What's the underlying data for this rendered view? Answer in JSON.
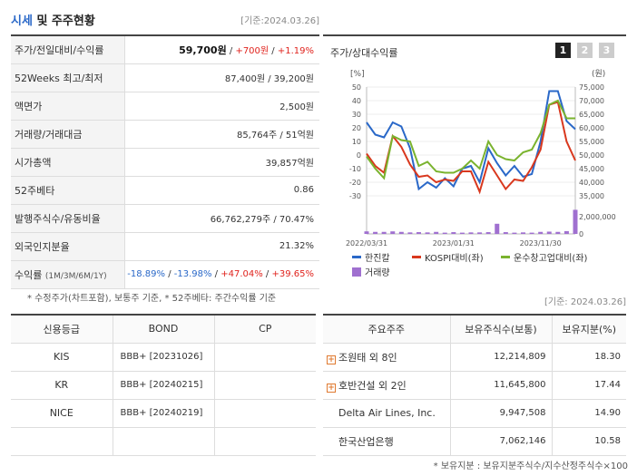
{
  "header": {
    "title_blue": "시세",
    "title_rest": " 및 주주현황",
    "date": "[기준:2024.03.26]"
  },
  "quote": {
    "price_label": "주가/전일대비/수익률",
    "price": "59,700원",
    "sep": " / ",
    "change": "+700원",
    "rate": "+1.19%",
    "week52_label": "52Weeks 최고/최저",
    "week52_value": "87,400원 / 39,200원",
    "par_label": "액면가",
    "par_value": "2,500원",
    "volume_label": "거래량/거래대금",
    "volume_value": "85,764주 / 51억원",
    "mcap_label": "시가총액",
    "mcap_value": "39,857억원",
    "beta_label": "52주베타",
    "beta_value": "0.86",
    "shares_label": "발행주식수/유동비율",
    "shares_value": "66,762,279주 / 70.47%",
    "foreign_label": "외국인지분율",
    "foreign_value": "21.32%",
    "return_label": "수익률",
    "return_period": "(1M/3M/6M/1Y)",
    "ret_1m": "-18.89%",
    "ret_3m": "-13.98%",
    "ret_6m": "+47.04%",
    "ret_1y": "+39.65%"
  },
  "note1": "* 수정주가(차트포함), 보통주 기준, * 52주베타: 주간수익률 기준",
  "chart": {
    "title": "주가/상대수익률",
    "pages": [
      "1",
      "2",
      "3"
    ],
    "unit_right": "(원)"
  },
  "chart_data": {
    "type": "line",
    "title": "주가/상대수익률",
    "x": [
      "2022/03/31",
      "2022/04",
      "2022/05",
      "2022/06",
      "2022/07",
      "2022/08",
      "2022/09",
      "2022/10",
      "2022/11",
      "2022/12",
      "2023/01/31",
      "2023/02",
      "2023/03",
      "2023/04",
      "2023/05",
      "2023/06",
      "2023/07",
      "2023/08",
      "2023/09",
      "2023/10",
      "2023/11/30",
      "2023/12",
      "2024/01",
      "2024/02",
      "2024/03"
    ],
    "xticks": [
      "2022/03/31",
      "2023/01/31",
      "2023/11/30"
    ],
    "left_axis": {
      "range": [
        -30,
        50
      ],
      "ticks": [
        "50",
        "40",
        "30",
        "20",
        "10",
        "0",
        "-10",
        "-20",
        "-30"
      ]
    },
    "right_axis": {
      "range": [
        35000,
        75000
      ],
      "ticks": [
        "75,000",
        "70,000",
        "65,000",
        "60,000",
        "55,000",
        "50,000",
        "45,000",
        "40,000",
        "35,000"
      ]
    },
    "volume_axis": {
      "ticks": [
        "2,000,000",
        "0"
      ]
    },
    "series": [
      {
        "name": "한진칼",
        "axis": "left",
        "color": "#2a68c8",
        "values": [
          24,
          15,
          13,
          24,
          21,
          5,
          -25,
          -20,
          -24,
          -17,
          -23,
          -10,
          -8,
          -20,
          5,
          -6,
          -15,
          -8,
          -16,
          -14,
          10,
          47,
          47,
          25,
          19
        ]
      },
      {
        "name": "KOSPI대비(좌)",
        "axis": "left",
        "color": "#d9381e",
        "values": [
          1,
          -8,
          -13,
          14,
          6,
          -7,
          -16,
          -15,
          -20,
          -18,
          -19,
          -12,
          -12,
          -27,
          -5,
          -15,
          -25,
          -18,
          -19,
          -9,
          4,
          37,
          39,
          10,
          -4
        ]
      },
      {
        "name": "운수창고업대비(좌)",
        "axis": "left",
        "color": "#7ab32e",
        "values": [
          -1,
          -10,
          -17,
          14,
          11,
          10,
          -8,
          -5,
          -12,
          -13,
          -13,
          -10,
          -4,
          -10,
          10,
          0,
          -3,
          -4,
          2,
          4,
          16,
          37,
          40,
          27,
          27
        ]
      }
    ],
    "volume": {
      "name": "거래량",
      "color": "#a070d0",
      "values": [
        0.1,
        0.08,
        0.08,
        0.1,
        0.08,
        0.06,
        0.07,
        0.06,
        0.08,
        0.05,
        0.07,
        0.05,
        0.06,
        0.06,
        0.07,
        0.4,
        0.07,
        0.05,
        0.06,
        0.05,
        0.08,
        0.09,
        0.08,
        0.11,
        0.95
      ]
    }
  },
  "date2": "[기준: 2024.03.26]",
  "credit": {
    "headers": [
      "신용등급",
      "BOND",
      "CP"
    ],
    "rows": [
      {
        "agency": "KIS",
        "bond": "BBB+ [20231026]",
        "cp": ""
      },
      {
        "agency": "KR",
        "bond": "BBB+ [20240215]",
        "cp": ""
      },
      {
        "agency": "NICE",
        "bond": "BBB+ [20240219]",
        "cp": ""
      },
      {
        "agency": "",
        "bond": "",
        "cp": ""
      }
    ]
  },
  "holders": {
    "headers": [
      "주요주주",
      "보유주식수(보통)",
      "보유지분(%)"
    ],
    "rows": [
      {
        "name": "조원태 외 8인",
        "shares": "12,214,809",
        "pct": "18.30",
        "expand": "+"
      },
      {
        "name": "호반건설 외 2인",
        "shares": "11,645,800",
        "pct": "17.44",
        "expand": "+"
      },
      {
        "name": "Delta Air Lines, Inc.",
        "shares": "9,947,508",
        "pct": "14.90",
        "expand": ""
      },
      {
        "name": "한국산업은행",
        "shares": "7,062,146",
        "pct": "10.58",
        "expand": ""
      }
    ]
  },
  "note2": "* 보유지분 : 보유지분주식수/지수산정주식수×100"
}
